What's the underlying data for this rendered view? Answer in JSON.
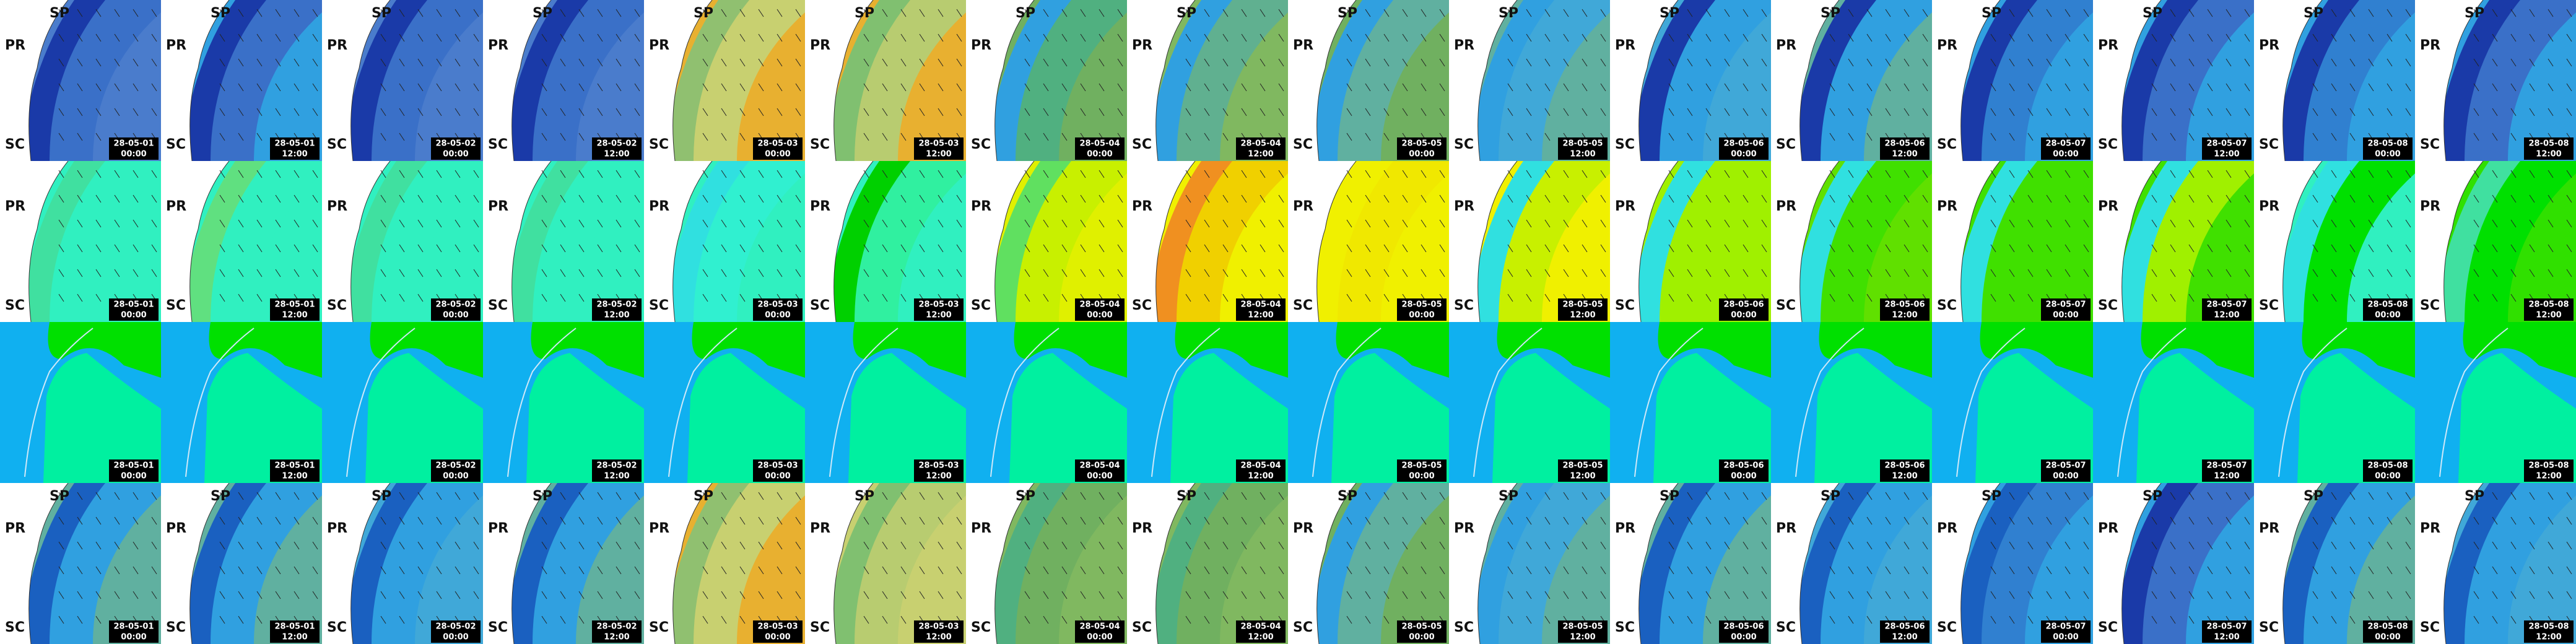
{
  "columns": [
    {
      "date": "28-05-01",
      "time": "00:00"
    },
    {
      "date": "28-05-01",
      "time": "12:00"
    },
    {
      "date": "28-05-02",
      "time": "00:00"
    },
    {
      "date": "28-05-02",
      "time": "12:00"
    },
    {
      "date": "28-05-03",
      "time": "00:00"
    },
    {
      "date": "28-05-03",
      "time": "12:00"
    },
    {
      "date": "28-05-04",
      "time": "00:00"
    },
    {
      "date": "28-05-04",
      "time": "12:00"
    },
    {
      "date": "28-05-05",
      "time": "00:00"
    },
    {
      "date": "28-05-05",
      "time": "12:00"
    },
    {
      "date": "28-05-06",
      "time": "00:00"
    },
    {
      "date": "28-05-06",
      "time": "12:00"
    },
    {
      "date": "28-05-07",
      "time": "00:00"
    },
    {
      "date": "28-05-07",
      "time": "12:00"
    },
    {
      "date": "28-05-08",
      "time": "00:00"
    },
    {
      "date": "28-05-08",
      "time": "12:00"
    }
  ],
  "rows": [
    {
      "labels": [
        "SP",
        "PR",
        "SC"
      ],
      "tiles": [
        [
          "#1a3aa8",
          "#3a70c8",
          "#4a7ccc"
        ],
        [
          "#1a3aa8",
          "#3a70c8",
          "#30a0e0"
        ],
        [
          "#1a3aa8",
          "#3a70c8",
          "#4a7ccc"
        ],
        [
          "#1a3aa8",
          "#3a70c8",
          "#4a7ccc"
        ],
        [
          "#90c070",
          "#c8d070",
          "#e8b030"
        ],
        [
          "#80c070",
          "#b8cc70",
          "#e8b030"
        ],
        [
          "#30a0e0",
          "#50b080",
          "#70b060"
        ],
        [
          "#30a0e0",
          "#60b090",
          "#80b860"
        ],
        [
          "#30a0e0",
          "#60b0a0",
          "#70b060"
        ],
        [
          "#30a0e0",
          "#40a8d8",
          "#60b0a0"
        ],
        [
          "#1a3aa8",
          "#30a0e0",
          "#40a8d8"
        ],
        [
          "#1a3aa8",
          "#30a0e0",
          "#60b0a0"
        ],
        [
          "#1a3aa8",
          "#3080d0",
          "#30a0e0"
        ],
        [
          "#1a3aa8",
          "#3a70c8",
          "#30a0e0"
        ],
        [
          "#1a3aa8",
          "#3080d0",
          "#30a0e0"
        ],
        [
          "#1a3aa8",
          "#3a70c8",
          "#30a0e0"
        ]
      ]
    },
    {
      "labels": [
        "PR",
        "SC"
      ],
      "tiles": [
        [
          "#40e0a0",
          "#30f0c0",
          "#30f0c0"
        ],
        [
          "#60e080",
          "#30f0c0",
          "#30f0c0"
        ],
        [
          "#40e0a0",
          "#30f0c0",
          "#30f0c0"
        ],
        [
          "#40e0a0",
          "#30f0c0",
          "#30f0c0"
        ],
        [
          "#30e0e0",
          "#30f0d0",
          "#30f0c0"
        ],
        [
          "#00d000",
          "#30f0a0",
          "#30f0c0"
        ],
        [
          "#60e060",
          "#c8f000",
          "#e0f000"
        ],
        [
          "#f09020",
          "#f0d000",
          "#f0f000"
        ],
        [
          "#f0f000",
          "#f0e800",
          "#f0f000"
        ],
        [
          "#30e0e0",
          "#c8f000",
          "#f0f000"
        ],
        [
          "#30e0e0",
          "#a0f000",
          "#a0f000"
        ],
        [
          "#30e0e0",
          "#40e000",
          "#60e000"
        ],
        [
          "#30e0e0",
          "#40e000",
          "#40e000"
        ],
        [
          "#30e0e0",
          "#a0f000",
          "#40e000"
        ],
        [
          "#30e0e0",
          "#00e000",
          "#30f0c0"
        ],
        [
          "#40e0a0",
          "#00e000",
          "#30e000"
        ]
      ]
    },
    {
      "labels": [],
      "tiles": [
        [
          "#10b0f0",
          "#00f0a0",
          "#00e000"
        ],
        [
          "#10b0f0",
          "#00f0a0",
          "#00e000"
        ],
        [
          "#10b0f0",
          "#00f0a0",
          "#00e000"
        ],
        [
          "#10b0f0",
          "#00f0a0",
          "#00e000"
        ],
        [
          "#10b0f0",
          "#00f0a0",
          "#00e000"
        ],
        [
          "#10b0f0",
          "#00f0a0",
          "#00e000"
        ],
        [
          "#10b0f0",
          "#00f0a0",
          "#00e000"
        ],
        [
          "#10b0f0",
          "#00f0a0",
          "#00e000"
        ],
        [
          "#10b0f0",
          "#00f0a0",
          "#00e000"
        ],
        [
          "#10b0f0",
          "#00f0a0",
          "#00e000"
        ],
        [
          "#10b0f0",
          "#00f0a0",
          "#00e000"
        ],
        [
          "#10b0f0",
          "#00f0a0",
          "#00e000"
        ],
        [
          "#10b0f0",
          "#00f0a0",
          "#00e000"
        ],
        [
          "#10b0f0",
          "#00f0a0",
          "#00e000"
        ],
        [
          "#10b0f0",
          "#00f0a0",
          "#00e000"
        ],
        [
          "#10b0f0",
          "#00f0a0",
          "#00e000"
        ]
      ]
    },
    {
      "labels": [
        "SP",
        "PR",
        "SC"
      ],
      "tiles": [
        [
          "#1a60c0",
          "#30a0e0",
          "#60b0a0"
        ],
        [
          "#1a60c0",
          "#30a0e0",
          "#60b0a0"
        ],
        [
          "#1a60c0",
          "#30a0e0",
          "#40a8d8"
        ],
        [
          "#1a60c0",
          "#30a0e0",
          "#60b0a0"
        ],
        [
          "#90c070",
          "#c8d070",
          "#e8b030"
        ],
        [
          "#80c070",
          "#b8cc70",
          "#c8d070"
        ],
        [
          "#50b080",
          "#70b060",
          "#80b860"
        ],
        [
          "#50b080",
          "#70b060",
          "#80b860"
        ],
        [
          "#30a0e0",
          "#60b0a0",
          "#70b060"
        ],
        [
          "#30a0e0",
          "#40a8d8",
          "#60b0a0"
        ],
        [
          "#1a60c0",
          "#30a0e0",
          "#60b0a0"
        ],
        [
          "#1a60c0",
          "#30a0e0",
          "#40a8d8"
        ],
        [
          "#1a60c0",
          "#3080d0",
          "#30a0e0"
        ],
        [
          "#1a3aa8",
          "#3a70c8",
          "#30a0e0"
        ],
        [
          "#1a60c0",
          "#30a0e0",
          "#60b0a0"
        ],
        [
          "#1a60c0",
          "#30a0e0",
          "#40a8d8"
        ]
      ]
    }
  ]
}
